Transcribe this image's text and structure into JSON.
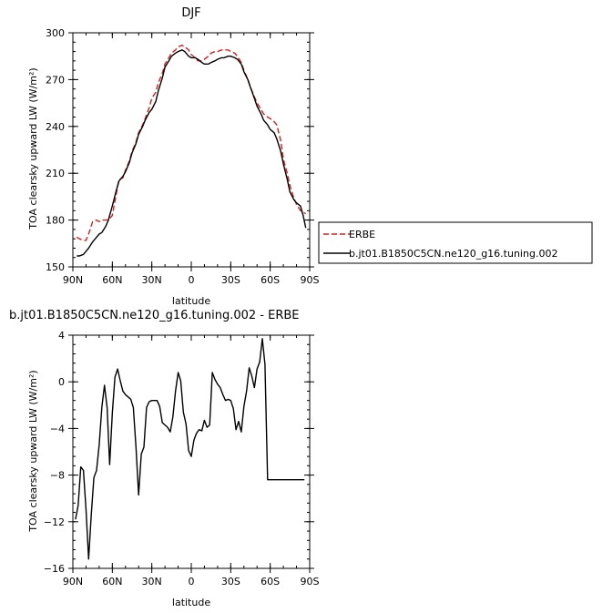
{
  "chart_data": [
    {
      "type": "line",
      "title": "DJF",
      "xlabel": "latitude",
      "ylabel": "TOA clearsky upward LW (W/m²)",
      "x_ticks": [
        "90N",
        "60N",
        "30N",
        "0",
        "30S",
        "60S",
        "90S"
      ],
      "xlim": [
        -90,
        90
      ],
      "ylim": [
        150,
        300
      ],
      "y_ticks": [
        150,
        180,
        210,
        240,
        270,
        300
      ],
      "legend_placement": "right",
      "series": [
        {
          "name": "ERBE",
          "color": "#e41a1c",
          "dash": "dashed",
          "x": [
            -87,
            -85,
            -82,
            -80,
            -78,
            -75,
            -72,
            -70,
            -68,
            -65,
            -63,
            -60,
            -57,
            -55,
            -52,
            -50,
            -47,
            -45,
            -42,
            -40,
            -37,
            -35,
            -32,
            -30,
            -27,
            -25,
            -22,
            -20,
            -17,
            -15,
            -12,
            -10,
            -7,
            -5,
            -2,
            0,
            3,
            5,
            8,
            10,
            13,
            15,
            18,
            20,
            23,
            25,
            28,
            30,
            33,
            35,
            38,
            40,
            43,
            45,
            48,
            50,
            53,
            55,
            58,
            60,
            63,
            65,
            68,
            70,
            73,
            75,
            78,
            80,
            83,
            85,
            87
          ],
          "y": [
            169,
            168,
            167,
            167,
            171,
            179,
            180,
            179,
            180,
            180,
            180,
            183,
            197,
            206,
            207,
            212,
            218,
            224,
            230,
            236,
            241,
            245,
            252,
            258,
            262,
            268,
            274,
            280,
            284,
            287,
            289,
            291,
            292,
            291,
            289,
            286,
            284,
            282,
            282,
            283,
            285,
            287,
            288,
            288,
            289,
            289,
            289,
            288,
            287,
            285,
            281,
            276,
            270,
            265,
            259,
            255,
            251,
            248,
            246,
            245,
            243,
            241,
            231,
            219,
            210,
            202,
            194,
            190,
            186,
            185,
            184
          ]
        },
        {
          "name": "b.jt01.B1850C5CN.ne120_g16.tuning.002",
          "color": "#000000",
          "dash": "solid",
          "x": [
            -87,
            -85,
            -82,
            -80,
            -78,
            -75,
            -72,
            -70,
            -68,
            -65,
            -63,
            -60,
            -57,
            -55,
            -52,
            -50,
            -47,
            -45,
            -42,
            -40,
            -37,
            -35,
            -32,
            -30,
            -27,
            -25,
            -22,
            -20,
            -17,
            -15,
            -12,
            -10,
            -7,
            -5,
            -2,
            0,
            3,
            5,
            8,
            10,
            13,
            15,
            18,
            20,
            23,
            25,
            28,
            30,
            33,
            35,
            38,
            40,
            43,
            45,
            48,
            50,
            53,
            55,
            58,
            60,
            63,
            65,
            68,
            70,
            73,
            75,
            78,
            80,
            83,
            85,
            87
          ],
          "y": [
            157,
            157,
            158,
            160,
            162,
            166,
            169,
            171,
            172,
            176,
            180,
            189,
            199,
            205,
            208,
            211,
            217,
            223,
            229,
            235,
            240,
            244,
            249,
            251,
            256,
            263,
            271,
            278,
            282,
            285,
            287,
            288,
            289,
            288,
            285,
            284,
            284,
            283,
            281,
            280,
            280,
            281,
            282,
            283,
            284,
            284,
            285,
            285,
            284,
            283,
            280,
            275,
            270,
            265,
            258,
            253,
            248,
            244,
            241,
            238,
            236,
            232,
            224,
            216,
            206,
            198,
            193,
            191,
            189,
            183,
            175
          ]
        }
      ]
    },
    {
      "type": "line",
      "title": "b.jt01.B1850C5CN.ne120_g16.tuning.002 - ERBE",
      "xlabel": "latitude",
      "ylabel": "TOA clearsky upward LW (W/m²)",
      "x_ticks": [
        "90N",
        "60N",
        "30N",
        "0",
        "30S",
        "60S",
        "90S"
      ],
      "xlim": [
        -90,
        90
      ],
      "ylim": [
        -16,
        4
      ],
      "y_ticks": [
        -16,
        -12,
        -8,
        -4,
        0,
        4
      ],
      "series": [
        {
          "name": "",
          "color": "#000000",
          "dash": "solid",
          "x": [
            -88,
            -86,
            -84,
            -82,
            -80,
            -78,
            -76,
            -74,
            -72,
            -70,
            -68,
            -66,
            -64,
            -62,
            -60,
            -58,
            -56,
            -54,
            -52,
            -50,
            -48,
            -46,
            -44,
            -42,
            -40,
            -38,
            -36,
            -34,
            -32,
            -30,
            -28,
            -26,
            -24,
            -22,
            -20,
            -18,
            -16,
            -14,
            -12,
            -10,
            -8,
            -6,
            -4,
            -2,
            0,
            2,
            4,
            6,
            8,
            10,
            12,
            14,
            16,
            18,
            20,
            22,
            24,
            26,
            28,
            30,
            32,
            34,
            36,
            38,
            40,
            42,
            44,
            46,
            48,
            50,
            52,
            54,
            56,
            58,
            60,
            62,
            64,
            66,
            68,
            70,
            72,
            74,
            76,
            78,
            80,
            82,
            84,
            86,
            88
          ],
          "y": [
            -11.8,
            -10.6,
            -7.3,
            -7.6,
            -10.9,
            -15.2,
            -11.4,
            -8.2,
            -7.6,
            -5.4,
            -2.2,
            -0.3,
            -2.2,
            -7.1,
            -2.7,
            0.4,
            1.1,
            0.1,
            -0.8,
            -1.1,
            -1.3,
            -1.5,
            -2.2,
            -5.6,
            -9.7,
            -6.2,
            -5.6,
            -2.2,
            -1.7,
            -1.6,
            -1.6,
            -1.6,
            -2.1,
            -3.5,
            -3.7,
            -3.9,
            -4.3,
            -3.0,
            -0.8,
            0.8,
            0.1,
            -2.6,
            -3.6,
            -5.9,
            -6.4,
            -5.0,
            -4.4,
            -4.1,
            -4.2,
            -3.3,
            -3.9,
            -3.7,
            0.8,
            0.2,
            -0.2,
            -0.5,
            -1.1,
            -1.6,
            -1.5,
            -1.6,
            -2.3,
            -4.1,
            -3.4,
            -4.3,
            -2.1,
            -0.8,
            1.2,
            0.5,
            -0.5,
            1.1,
            1.7,
            3.7,
            1.5,
            -8.4,
            -8.4,
            -8.4,
            -8.4,
            -8.4,
            -8.4,
            -8.4,
            -8.4,
            -8.4,
            -8.4,
            -8.4,
            -8.4,
            -8.4,
            -8.4,
            -8.4,
            -8.4
          ]
        }
      ]
    }
  ]
}
